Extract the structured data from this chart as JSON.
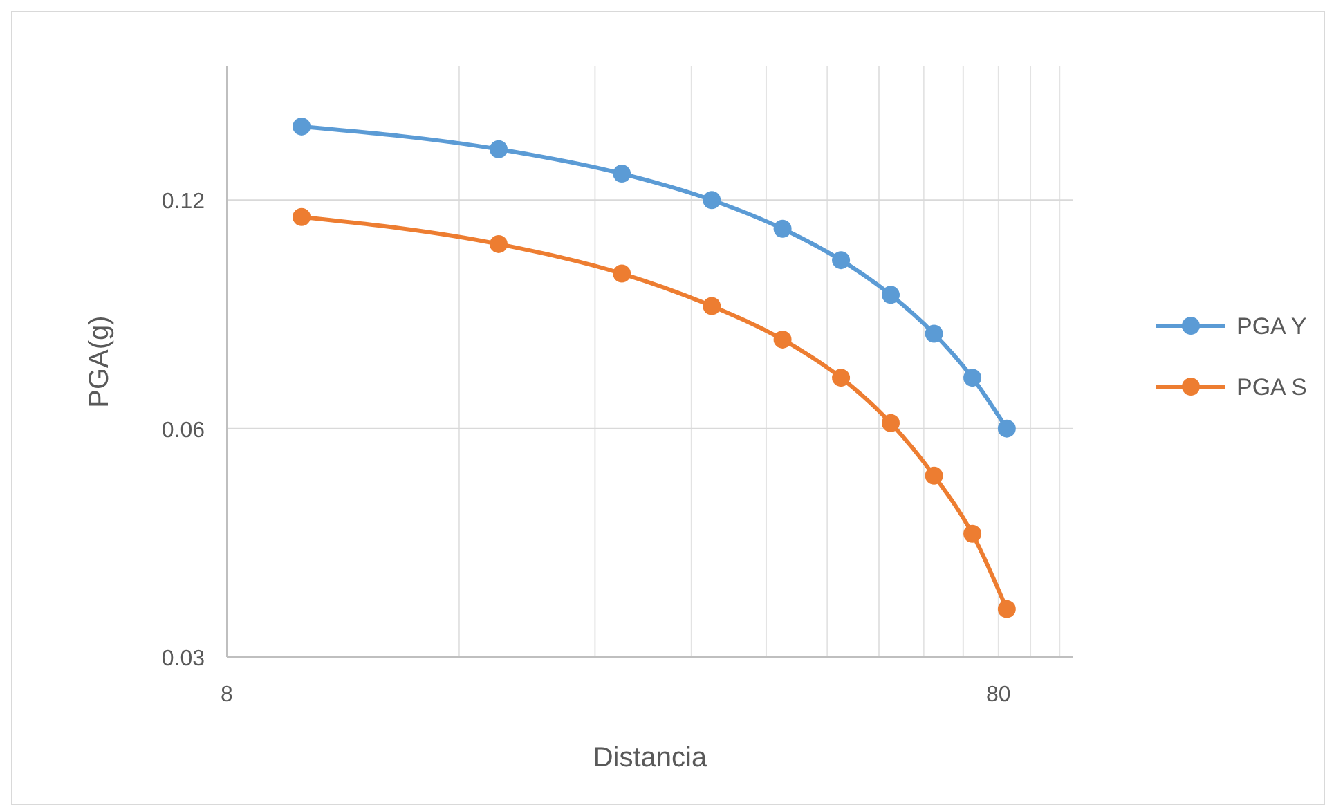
{
  "chart_data": {
    "type": "line",
    "xlabel": "Distancia",
    "ylabel": "PGA(g)",
    "x": [
      10,
      18,
      26,
      34,
      42,
      50,
      58,
      66,
      74,
      82
    ],
    "series": [
      {
        "name": "PGA Y",
        "color": "#5b9bd5",
        "values": [
          0.15,
          0.14,
          0.13,
          0.12,
          0.11,
          0.1,
          0.09,
          0.08,
          0.07,
          0.06
        ]
      },
      {
        "name": "PGA S",
        "color": "#ed7d31",
        "values": [
          0.114,
          0.105,
          0.096,
          0.087,
          0.0786,
          0.07,
          0.061,
          0.052,
          0.0436,
          0.0347
        ]
      }
    ],
    "log": "xy",
    "xlim": [
      8,
      100
    ],
    "ylim": [
      0.03,
      0.18
    ],
    "xticks": [
      8,
      {
        "value": 16,
        "label": null
      },
      {
        "value": 24,
        "label": null
      },
      {
        "value": 32,
        "label": null
      },
      {
        "value": 40,
        "label": null
      },
      {
        "value": 48,
        "label": null
      },
      {
        "value": 56,
        "label": null
      },
      {
        "value": 64,
        "label": null
      },
      {
        "value": 72,
        "label": null
      },
      80,
      {
        "value": 88,
        "label": null
      },
      {
        "value": 96,
        "label": null
      }
    ],
    "yticks": [
      0.03,
      0.06,
      0.12
    ],
    "grid": true,
    "legend": "right",
    "marker": "circle",
    "line_style": "solid"
  }
}
